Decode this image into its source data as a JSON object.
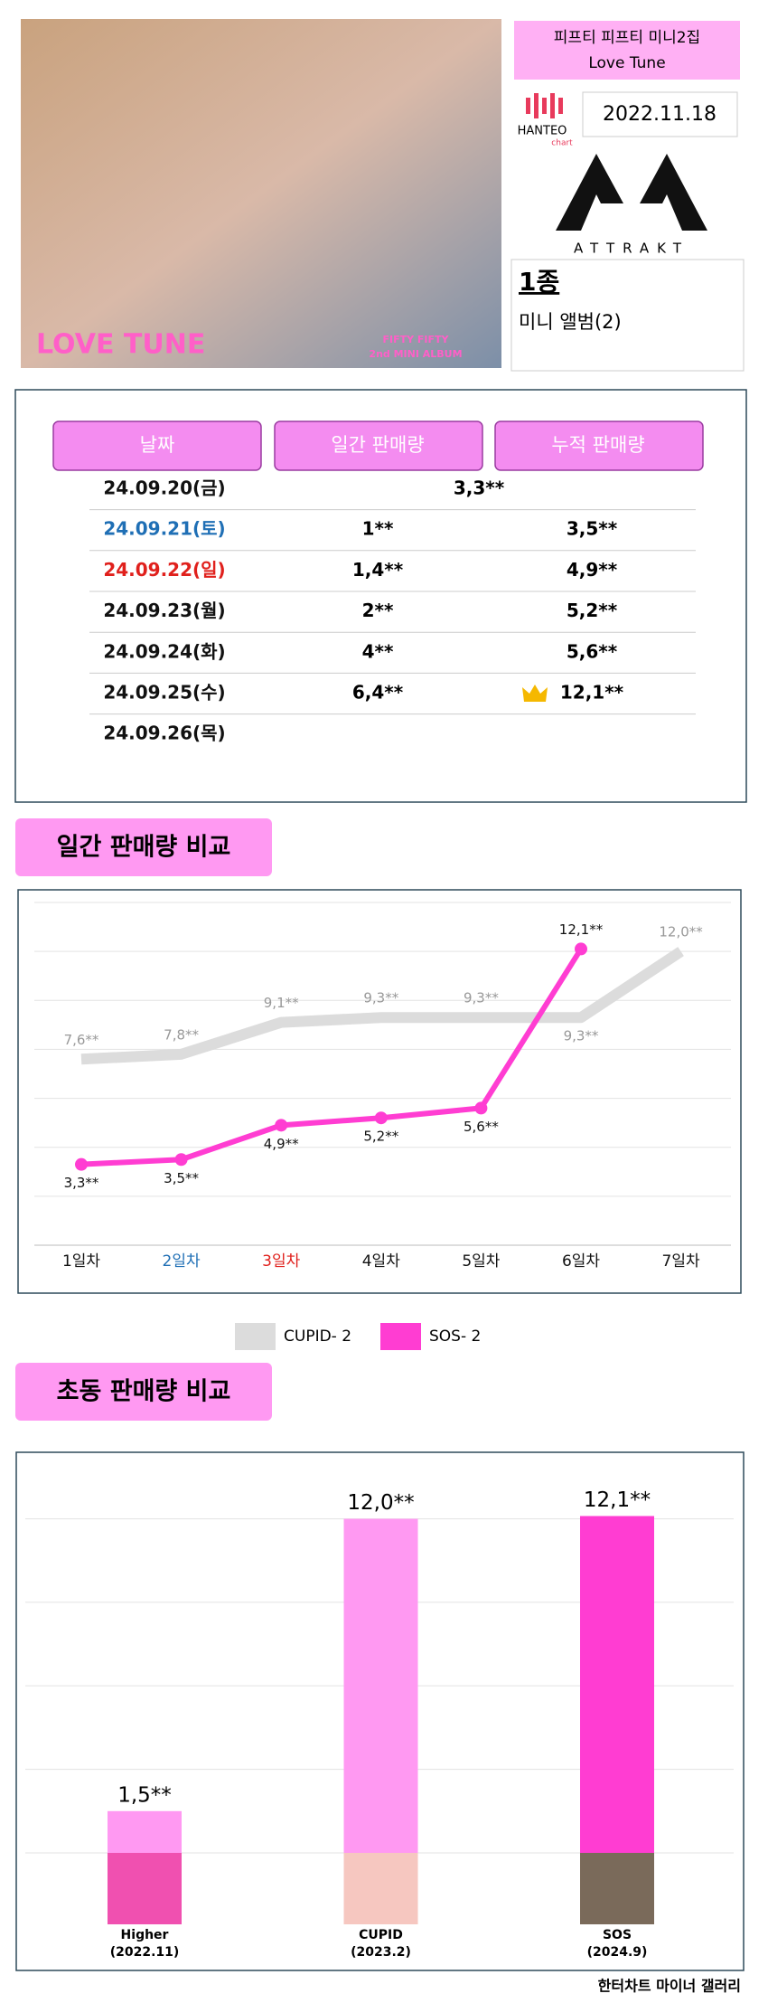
{
  "header": {
    "title": "피프티 피프티 미니2집",
    "subtitle": "Love Tune",
    "album_text": "LOVE TUNE",
    "album_caption": "FIFTY FIFTY",
    "album_caption2": "2nd MINI ALBUM",
    "hanteo": "HANTEO",
    "hanteo_sub": "chart",
    "date": "2022.11.18",
    "label": "ATTRAKT",
    "versions": "1종",
    "format": "미니 앨범(2)"
  },
  "table": {
    "columns": [
      "날짜",
      "일간 판매량",
      "누적 판매량"
    ],
    "rows": [
      {
        "date": "24.09.20(금)",
        "merged": "3,3**"
      },
      {
        "date": "24.09.21(토)",
        "date_color": "#1f6fb5",
        "daily": "1**",
        "total": "3,5**"
      },
      {
        "date": "24.09.22(일)",
        "date_color": "#e0201c",
        "daily": "1,4**",
        "total": "4,9**"
      },
      {
        "date": "24.09.23(월)",
        "daily": "2**",
        "total": "5,2**"
      },
      {
        "date": "24.09.24(화)",
        "daily": "4**",
        "total": "5,6**"
      },
      {
        "date": "24.09.25(수)",
        "daily": "6,4**",
        "total": "12,1**",
        "crown": true
      },
      {
        "date": "24.09.26(목)"
      }
    ]
  },
  "chart_data": [
    {
      "type": "line",
      "title": "일간 판매량 비교",
      "categories": [
        "1일차",
        "2일차",
        "3일차",
        "4일차",
        "5일차",
        "6일차",
        "7일차"
      ],
      "category_colors": [
        "#111111",
        "#1f6fb5",
        "#e0201c",
        "#111111",
        "#111111",
        "#111111",
        "#111111"
      ],
      "series": [
        {
          "name": "CUPID- 2",
          "color": "#dcdcdc",
          "label_color": "#999999",
          "marker": false,
          "values": [
            7600,
            7800,
            9100,
            9300,
            9300,
            9300,
            12000
          ],
          "value_labels": [
            "7,6**",
            "7,8**",
            "9,1**",
            "9,3**",
            "9,3**",
            "9,3**",
            "12,0**"
          ]
        },
        {
          "name": "SOS- 2",
          "color": "#ff3dd2",
          "label_color": "#111111",
          "marker": true,
          "values": [
            3300,
            3500,
            4900,
            5200,
            5600,
            12100,
            null
          ],
          "value_labels": [
            "3,3**",
            "3,5**",
            "4,9**",
            "5,2**",
            "5,6**",
            "12,1**",
            null
          ]
        }
      ],
      "ylim": [
        0,
        14000
      ],
      "yticks": [
        0,
        2000,
        4000,
        6000,
        8000,
        10000,
        12000,
        14000
      ],
      "grid": true,
      "legend": "bottom"
    },
    {
      "type": "bar",
      "title": "초동 판매량 비교",
      "categories": [
        "Higher",
        "CUPID",
        "SOS"
      ],
      "dates": [
        "(2022.11)",
        "(2023.2)",
        "(2024.9)"
      ],
      "values": [
        1500,
        12000,
        12100
      ],
      "value_labels": [
        "1,5**",
        "12,0**",
        "12,1**"
      ],
      "colors": [
        "#ff99f2",
        "#ff99f2",
        "#ff3dd2"
      ],
      "ylim": [
        0,
        14000
      ],
      "yticks": [
        0,
        3000,
        6000,
        9000,
        12000
      ],
      "grid": true
    }
  ],
  "footer": "한터차트 마이너 갤러리"
}
